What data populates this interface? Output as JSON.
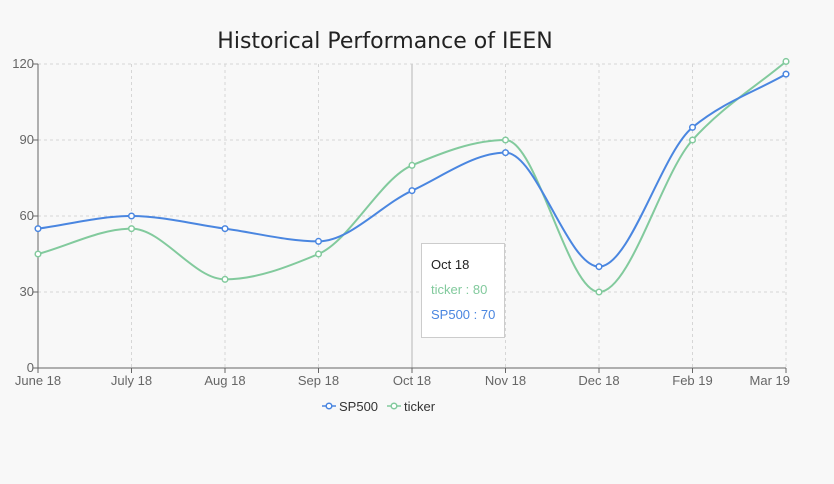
{
  "chart_data": {
    "type": "line",
    "title": "Historical Performance of IEEN",
    "categories": [
      "June 18",
      "July 18",
      "Aug 18",
      "Sep 18",
      "Oct 18",
      "Nov 18",
      "Dec 18",
      "Feb 19",
      "Mar 19"
    ],
    "series": [
      {
        "name": "SP500",
        "color": "#4a86e0",
        "values": [
          55,
          60,
          55,
          50,
          70,
          85,
          40,
          95,
          116
        ]
      },
      {
        "name": "ticker",
        "color": "#82ca9d",
        "values": [
          45,
          55,
          35,
          45,
          80,
          90,
          30,
          90,
          121
        ]
      }
    ],
    "y_ticks": [
      0,
      30,
      60,
      90,
      120
    ],
    "ylim": [
      0,
      120
    ],
    "grid": true,
    "legend_position": "bottom",
    "tooltip": {
      "label": "Oct 18",
      "category_index": 4,
      "entries": [
        {
          "name": "ticker",
          "value": 80,
          "text": "ticker : 80",
          "color": "#82ca9d"
        },
        {
          "name": "SP500",
          "value": 70,
          "text": "SP500 : 70",
          "color": "#4a86e0"
        }
      ]
    }
  }
}
